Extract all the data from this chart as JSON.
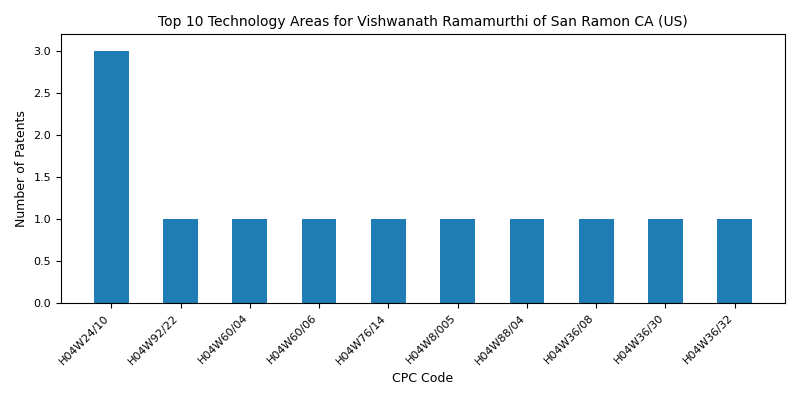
{
  "title": "Top 10 Technology Areas for Vishwanath Ramamurthi of San Ramon CA (US)",
  "xlabel": "CPC Code",
  "ylabel": "Number of Patents",
  "categories": [
    "H04W24/10",
    "H04W92/22",
    "H04W60/04",
    "H04W60/06",
    "H04W76/14",
    "H04W8/005",
    "H04W88/04",
    "H04W36/08",
    "H04W36/30",
    "H04W36/32"
  ],
  "values": [
    3,
    1,
    1,
    1,
    1,
    1,
    1,
    1,
    1,
    1
  ],
  "bar_color": "#1f7cb4",
  "bar_width": 0.5,
  "ylim": [
    0,
    3.2
  ],
  "yticks": [
    0.0,
    0.5,
    1.0,
    1.5,
    2.0,
    2.5,
    3.0
  ],
  "title_fontsize": 10,
  "label_fontsize": 9,
  "tick_fontsize": 8,
  "figsize": [
    8.0,
    4.0
  ],
  "dpi": 100
}
